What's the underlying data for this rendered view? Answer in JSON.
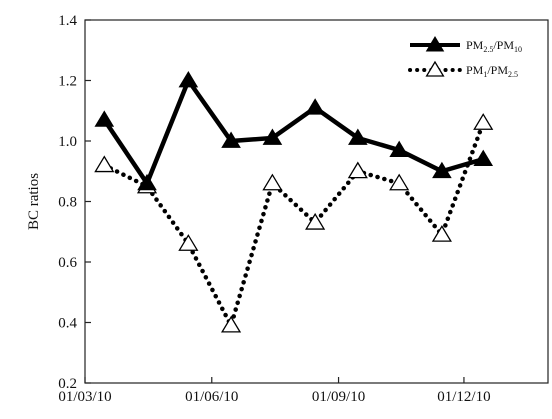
{
  "chart_data": {
    "type": "line",
    "title": "",
    "xlabel": "",
    "ylabel": "BC ratios",
    "ylim": [
      0.2,
      1.4
    ],
    "yticks": [
      "0.2",
      "0.4",
      "0.6",
      "0.8",
      "1.0",
      "1.2",
      "1.4"
    ],
    "xticks": [
      "01/03/10",
      "01/06/10",
      "01/09/10",
      "01/12/10"
    ],
    "xlim": [
      "2010-03-01",
      "2011-01-31"
    ],
    "grid": false,
    "legend_position": "top-right",
    "series": [
      {
        "name_parts": [
          "PM",
          "2.5",
          "/PM",
          "10"
        ],
        "marker": "filled-triangle",
        "line_style": "solid",
        "color": "#000000",
        "points": [
          {
            "x": "2010-03-15",
            "y": 1.07
          },
          {
            "x": "2010-04-15",
            "y": 0.86
          },
          {
            "x": "2010-05-15",
            "y": 1.2
          },
          {
            "x": "2010-06-15",
            "y": 1.0
          },
          {
            "x": "2010-07-15",
            "y": 1.01
          },
          {
            "x": "2010-08-15",
            "y": 1.11
          },
          {
            "x": "2010-09-15",
            "y": 1.01
          },
          {
            "x": "2010-10-15",
            "y": 0.97
          },
          {
            "x": "2010-11-15",
            "y": 0.9
          },
          {
            "x": "2010-12-15",
            "y": 0.94
          }
        ]
      },
      {
        "name_parts": [
          "PM",
          "1",
          "/PM",
          "2.5"
        ],
        "marker": "open-triangle",
        "line_style": "dotted",
        "color": "#000000",
        "points": [
          {
            "x": "2010-03-15",
            "y": 0.92
          },
          {
            "x": "2010-04-15",
            "y": 0.85
          },
          {
            "x": "2010-05-15",
            "y": 0.66
          },
          {
            "x": "2010-06-15",
            "y": 0.39
          },
          {
            "x": "2010-07-15",
            "y": 0.86
          },
          {
            "x": "2010-08-15",
            "y": 0.73
          },
          {
            "x": "2010-09-15",
            "y": 0.9
          },
          {
            "x": "2010-10-15",
            "y": 0.86
          },
          {
            "x": "2010-11-15",
            "y": 0.69
          },
          {
            "x": "2010-12-15",
            "y": 1.06
          }
        ]
      }
    ]
  }
}
